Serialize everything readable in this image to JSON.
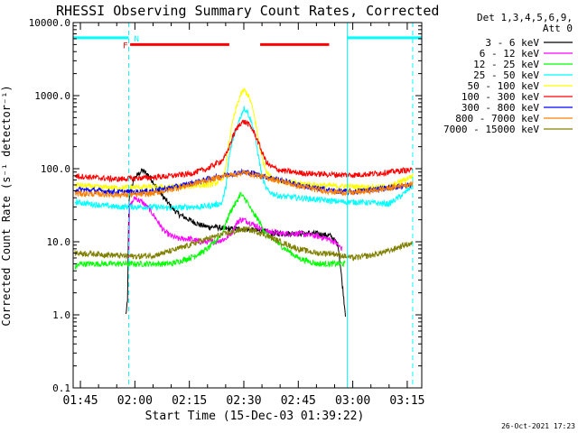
{
  "chart_data": {
    "type": "line",
    "title": "RHESSI Observing Summary Count Rates, Corrected",
    "xlabel": "Start Time (15-Dec-03 01:39:22)",
    "ylabel": "Corrected Count Rate (s⁻¹ detector⁻¹)",
    "yscale": "log",
    "ylim": [
      0.1,
      10000
    ],
    "y_ticks": [
      {
        "value": 0.1,
        "label": "0.1"
      },
      {
        "value": 1,
        "label": "1.0"
      },
      {
        "value": 10,
        "label": "10.0"
      },
      {
        "value": 100,
        "label": "100.0"
      },
      {
        "value": 1000,
        "label": "1000.0"
      },
      {
        "value": 10000,
        "label": "10000.0"
      }
    ],
    "xlim_minutes": [
      -17,
      79
    ],
    "x_ticks": [
      {
        "value": -15,
        "label": "01:45"
      },
      {
        "value": 0,
        "label": "02:00"
      },
      {
        "value": 15,
        "label": "02:15"
      },
      {
        "value": 30,
        "label": "02:30"
      },
      {
        "value": 45,
        "label": "02:45"
      },
      {
        "value": 60,
        "label": "03:00"
      },
      {
        "value": 75,
        "label": "03:15"
      }
    ],
    "x_unit": "minutes after 02:00 UT",
    "legend_header": [
      "Det 1,3,4,5,6,9,",
      "Att 0"
    ],
    "legend_position": "right",
    "timestamp": "26-Oct-2021 17:23",
    "flags": [
      {
        "label": "N",
        "color": "#00ffff",
        "intervals": [
          [
            -17,
            -1.7
          ],
          [
            58.5,
            79
          ]
        ],
        "level": 6200
      },
      {
        "label": "F",
        "color": "#ff0000",
        "intervals": [
          [
            -1.3,
            26
          ],
          [
            34.5,
            53.5
          ]
        ],
        "level": 5000
      }
    ],
    "vlines": [
      {
        "x": -17,
        "style": "solid",
        "color": "#00ffff"
      },
      {
        "x": -1.7,
        "style": "dashed",
        "color": "#00ffff"
      },
      {
        "x": 58.5,
        "style": "solid",
        "color": "#00ffff"
      },
      {
        "x": 76.5,
        "style": "dashed",
        "color": "#00ffff"
      }
    ],
    "series": [
      {
        "name": "3 - 6 keV",
        "color": "#000000",
        "x": [
          -2.5,
          -2.3,
          -2,
          -1.7,
          -1.5,
          -1,
          0,
          2,
          4,
          6,
          8,
          10,
          12,
          15,
          18,
          20,
          22,
          25,
          28,
          30,
          32,
          35,
          38,
          40,
          45,
          50,
          54,
          56,
          58
        ],
        "y": [
          1,
          1.2,
          1.5,
          30,
          40,
          55,
          75,
          95,
          80,
          55,
          40,
          30,
          24,
          20,
          17,
          16,
          16,
          15,
          15,
          15,
          14.5,
          14,
          13,
          13,
          13,
          13,
          12,
          9,
          1
        ]
      },
      {
        "name": "6 - 12 keV",
        "color": "#ff00ff",
        "x": [
          -1.7,
          -1.5,
          0,
          2,
          4,
          6,
          8,
          10,
          12,
          15,
          18,
          20,
          22,
          25,
          27,
          28,
          29,
          30,
          31,
          33,
          36,
          40,
          45,
          50,
          53,
          55,
          57
        ],
        "y": [
          5,
          30,
          40,
          35,
          28,
          20,
          14,
          12,
          11,
          11,
          10,
          10,
          10,
          11,
          14,
          18,
          20,
          20,
          19,
          17,
          14,
          13,
          13,
          12,
          11,
          10,
          8
        ]
      },
      {
        "name": "12 - 25 keV",
        "color": "#00ff00",
        "x": [
          -16.5,
          -15,
          -10,
          -5,
          -2,
          0,
          5,
          10,
          15,
          18,
          20,
          22,
          24,
          26,
          27,
          28,
          29,
          30,
          31,
          32,
          34,
          36,
          40,
          45,
          50,
          54,
          56,
          58
        ],
        "y": [
          4.5,
          5,
          5,
          5,
          5,
          5,
          5,
          5,
          6,
          7,
          8,
          10,
          13,
          24,
          30,
          35,
          45,
          40,
          35,
          27,
          20,
          13,
          9,
          6,
          5,
          5,
          5,
          5
        ]
      },
      {
        "name": "25 - 50 keV",
        "color": "#00ffff",
        "x": [
          -16.5,
          -10,
          -5,
          -1.7,
          0,
          5,
          10,
          15,
          18,
          20,
          22,
          24,
          25,
          26,
          27,
          28,
          29,
          30,
          31,
          32,
          33,
          34,
          35,
          36,
          37,
          40,
          45,
          50,
          55,
          58.5,
          62,
          66,
          70,
          74,
          76.5
        ],
        "y": [
          35,
          32,
          30,
          30,
          30,
          30,
          29,
          30,
          30,
          31,
          32,
          34,
          55,
          150,
          250,
          350,
          500,
          680,
          600,
          450,
          300,
          150,
          80,
          55,
          48,
          42,
          40,
          38,
          36,
          35,
          35,
          34,
          33,
          45,
          60
        ]
      },
      {
        "name": "50 - 100 keV",
        "color": "#ffff00",
        "x": [
          -16.5,
          -10,
          -5,
          0,
          5,
          10,
          15,
          20,
          22,
          24,
          25,
          26,
          27,
          28,
          29,
          30,
          31,
          32,
          33,
          34,
          35,
          36,
          37,
          40,
          45,
          50,
          55,
          60,
          65,
          70,
          74,
          76.5
        ],
        "y": [
          60,
          56,
          55,
          56,
          56,
          56,
          58,
          60,
          63,
          70,
          100,
          250,
          450,
          700,
          1000,
          1200,
          1050,
          800,
          500,
          250,
          140,
          100,
          80,
          68,
          63,
          60,
          58,
          57,
          56,
          56,
          70,
          80
        ]
      },
      {
        "name": "100 - 300 keV",
        "color": "#ff0000",
        "x": [
          -16.5,
          -10,
          -5,
          0,
          5,
          10,
          15,
          20,
          22,
          24,
          25,
          26,
          27,
          28,
          29,
          30,
          31,
          32,
          33,
          34,
          35,
          36,
          37,
          40,
          45,
          50,
          55,
          60,
          65,
          70,
          74,
          76.5
        ],
        "y": [
          80,
          75,
          72,
          74,
          76,
          80,
          85,
          100,
          115,
          130,
          150,
          200,
          280,
          350,
          420,
          440,
          420,
          370,
          300,
          230,
          170,
          130,
          110,
          95,
          88,
          85,
          83,
          82,
          85,
          90,
          95,
          95
        ]
      },
      {
        "name": "300 - 800 keV",
        "color": "#0000ff",
        "x": [
          -16.5,
          -10,
          -5,
          0,
          5,
          10,
          15,
          20,
          25,
          28,
          30,
          32,
          35,
          40,
          45,
          50,
          55,
          60,
          65,
          70,
          74,
          76.5
        ],
        "y": [
          52,
          50,
          48,
          48,
          50,
          55,
          62,
          72,
          82,
          88,
          90,
          88,
          80,
          70,
          60,
          54,
          50,
          48,
          52,
          55,
          58,
          60
        ]
      },
      {
        "name": "800 - 7000 keV",
        "color": "#ff8000",
        "x": [
          -16.5,
          -10,
          -5,
          0,
          5,
          10,
          15,
          20,
          25,
          28,
          30,
          32,
          35,
          40,
          45,
          50,
          55,
          60,
          65,
          70,
          74,
          76.5
        ],
        "y": [
          46,
          45,
          44,
          44,
          46,
          52,
          60,
          70,
          80,
          85,
          88,
          85,
          78,
          68,
          58,
          52,
          48,
          47,
          50,
          54,
          60,
          62
        ]
      },
      {
        "name": "7000 - 15000 keV",
        "color": "#808000",
        "x": [
          -16.5,
          -10,
          -5,
          0,
          5,
          10,
          15,
          20,
          25,
          28,
          30,
          32,
          35,
          40,
          45,
          50,
          54,
          57,
          60,
          65,
          70,
          74,
          76.5
        ],
        "y": [
          7,
          6.8,
          6.5,
          6.3,
          6.5,
          7.5,
          9,
          11,
          13,
          14,
          15,
          14.5,
          13,
          10,
          8,
          7,
          7,
          6.5,
          6,
          6.5,
          7.5,
          9,
          9.5
        ]
      }
    ]
  }
}
